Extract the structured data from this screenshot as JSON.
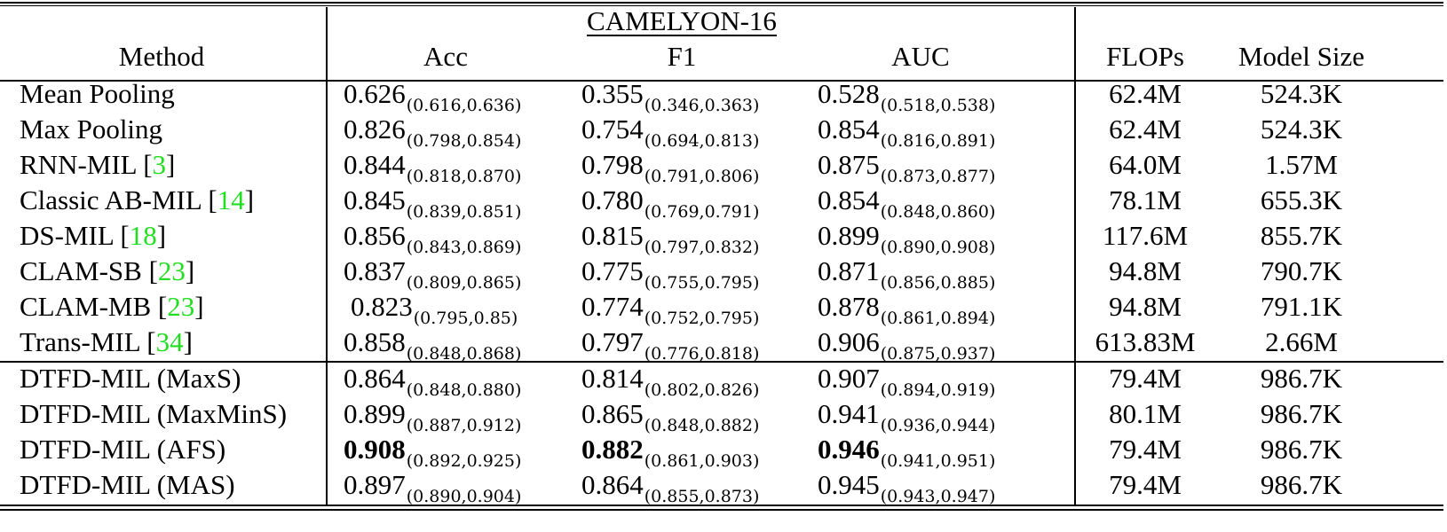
{
  "table": {
    "group_header": "CAMELYON-16",
    "columns": [
      "Method",
      "Acc",
      "F1",
      "AUC",
      "FLOPs",
      "Model Size"
    ],
    "citation_color": "#22dd22",
    "rows": [
      {
        "method": "Mean Pooling",
        "cite": "",
        "acc": "0.626",
        "acc_ci": "(0.616,0.636)",
        "f1": "0.355",
        "f1_ci": "(0.346,0.363)",
        "auc": "0.528",
        "auc_ci": "(0.518,0.538)",
        "flops": "62.4M",
        "size": "524.3K"
      },
      {
        "method": "Max Pooling",
        "cite": "",
        "acc": "0.826",
        "acc_ci": "(0.798,0.854)",
        "f1": "0.754",
        "f1_ci": "(0.694,0.813)",
        "auc": "0.854",
        "auc_ci": "(0.816,0.891)",
        "flops": "62.4M",
        "size": "524.3K"
      },
      {
        "method": "RNN-MIL",
        "cite": "3",
        "acc": "0.844",
        "acc_ci": "(0.818,0.870)",
        "f1": "0.798",
        "f1_ci": "(0.791,0.806)",
        "auc": "0.875",
        "auc_ci": "(0.873,0.877)",
        "flops": "64.0M",
        "size": "1.57M"
      },
      {
        "method": "Classic AB-MIL",
        "cite": "14",
        "acc": "0.845",
        "acc_ci": "(0.839,0.851)",
        "f1": "0.780",
        "f1_ci": "(0.769,0.791)",
        "auc": "0.854",
        "auc_ci": "(0.848,0.860)",
        "flops": "78.1M",
        "size": "655.3K"
      },
      {
        "method": "DS-MIL",
        "cite": "18",
        "acc": "0.856",
        "acc_ci": "(0.843,0.869)",
        "f1": "0.815",
        "f1_ci": "(0.797,0.832)",
        "auc": "0.899",
        "auc_ci": "(0.890,0.908)",
        "flops": "117.6M",
        "size": "855.7K"
      },
      {
        "method": "CLAM-SB",
        "cite": "23",
        "acc": "0.837",
        "acc_ci": "(0.809,0.865)",
        "f1": "0.775",
        "f1_ci": "(0.755,0.795)",
        "auc": "0.871",
        "auc_ci": "(0.856,0.885)",
        "flops": "94.8M",
        "size": "790.7K"
      },
      {
        "method": "CLAM-MB",
        "cite": "23",
        "acc": "0.823",
        "acc_ci": "(0.795,0.85)",
        "f1": "0.774",
        "f1_ci": "(0.752,0.795)",
        "auc": "0.878",
        "auc_ci": "(0.861,0.894)",
        "flops": "94.8M",
        "size": "791.1K"
      },
      {
        "method": "Trans-MIL",
        "cite": "34",
        "acc": "0.858",
        "acc_ci": "(0.848,0.868)",
        "f1": "0.797",
        "f1_ci": "(0.776,0.818)",
        "auc": "0.906",
        "auc_ci": "(0.875,0.937)",
        "flops": "613.83M",
        "size": "2.66M"
      },
      {
        "method": "DTFD-MIL (MaxS)",
        "cite": "",
        "acc": "0.864",
        "acc_ci": "(0.848,0.880)",
        "f1": "0.814",
        "f1_ci": "(0.802,0.826)",
        "auc": "0.907",
        "auc_ci": "(0.894,0.919)",
        "flops": "79.4M",
        "size": "986.7K"
      },
      {
        "method": "DTFD-MIL (MaxMinS)",
        "cite": "",
        "acc": "0.899",
        "acc_ci": "(0.887,0.912)",
        "f1": "0.865",
        "f1_ci": "(0.848,0.882)",
        "auc": "0.941",
        "auc_ci": "(0.936,0.944)",
        "flops": "80.1M",
        "size": "986.7K"
      },
      {
        "method": "DTFD-MIL (AFS)",
        "cite": "",
        "acc": "0.908",
        "acc_ci": "(0.892,0.925)",
        "f1": "0.882",
        "f1_ci": "(0.861,0.903)",
        "auc": "0.946",
        "auc_ci": "(0.941,0.951)",
        "flops": "79.4M",
        "size": "986.7K",
        "bold": true
      },
      {
        "method": "DTFD-MIL (MAS)",
        "cite": "",
        "acc": "0.897",
        "acc_ci": "(0.890,0.904)",
        "f1": "0.864",
        "f1_ci": "(0.855,0.873)",
        "auc": "0.945",
        "auc_ci": "(0.943,0.947)",
        "flops": "79.4M",
        "size": "986.7K"
      }
    ]
  },
  "chart_data": {
    "type": "table",
    "title": "CAMELYON-16",
    "columns": [
      "Method",
      "Acc",
      "Acc CI",
      "F1",
      "F1 CI",
      "AUC",
      "AUC CI",
      "FLOPs",
      "Model Size"
    ],
    "rows": [
      [
        "Mean Pooling",
        0.626,
        "(0.616,0.636)",
        0.355,
        "(0.346,0.363)",
        0.528,
        "(0.518,0.538)",
        "62.4M",
        "524.3K"
      ],
      [
        "Max Pooling",
        0.826,
        "(0.798,0.854)",
        0.754,
        "(0.694,0.813)",
        0.854,
        "(0.816,0.891)",
        "62.4M",
        "524.3K"
      ],
      [
        "RNN-MIL [3]",
        0.844,
        "(0.818,0.870)",
        0.798,
        "(0.791,0.806)",
        0.875,
        "(0.873,0.877)",
        "64.0M",
        "1.57M"
      ],
      [
        "Classic AB-MIL [14]",
        0.845,
        "(0.839,0.851)",
        0.78,
        "(0.769,0.791)",
        0.854,
        "(0.848,0.860)",
        "78.1M",
        "655.3K"
      ],
      [
        "DS-MIL [18]",
        0.856,
        "(0.843,0.869)",
        0.815,
        "(0.797,0.832)",
        0.899,
        "(0.890,0.908)",
        "117.6M",
        "855.7K"
      ],
      [
        "CLAM-SB [23]",
        0.837,
        "(0.809,0.865)",
        0.775,
        "(0.755,0.795)",
        0.871,
        "(0.856,0.885)",
        "94.8M",
        "790.7K"
      ],
      [
        "CLAM-MB [23]",
        0.823,
        "(0.795,0.85)",
        0.774,
        "(0.752,0.795)",
        0.878,
        "(0.861,0.894)",
        "94.8M",
        "791.1K"
      ],
      [
        "Trans-MIL [34]",
        0.858,
        "(0.848,0.868)",
        0.797,
        "(0.776,0.818)",
        0.906,
        "(0.875,0.937)",
        "613.83M",
        "2.66M"
      ],
      [
        "DTFD-MIL (MaxS)",
        0.864,
        "(0.848,0.880)",
        0.814,
        "(0.802,0.826)",
        0.907,
        "(0.894,0.919)",
        "79.4M",
        "986.7K"
      ],
      [
        "DTFD-MIL (MaxMinS)",
        0.899,
        "(0.887,0.912)",
        0.865,
        "(0.848,0.882)",
        0.941,
        "(0.936,0.944)",
        "80.1M",
        "986.7K"
      ],
      [
        "DTFD-MIL (AFS)",
        0.908,
        "(0.892,0.925)",
        0.882,
        "(0.861,0.903)",
        0.946,
        "(0.941,0.951)",
        "79.4M",
        "986.7K"
      ],
      [
        "DTFD-MIL (MAS)",
        0.897,
        "(0.890,0.904)",
        0.864,
        "(0.855,0.873)",
        0.945,
        "(0.943,0.947)",
        "79.4M",
        "986.7K"
      ]
    ],
    "bold_cells": [
      [
        "DTFD-MIL (AFS)",
        "Acc"
      ],
      [
        "DTFD-MIL (AFS)",
        "F1"
      ],
      [
        "DTFD-MIL (AFS)",
        "AUC"
      ]
    ]
  }
}
